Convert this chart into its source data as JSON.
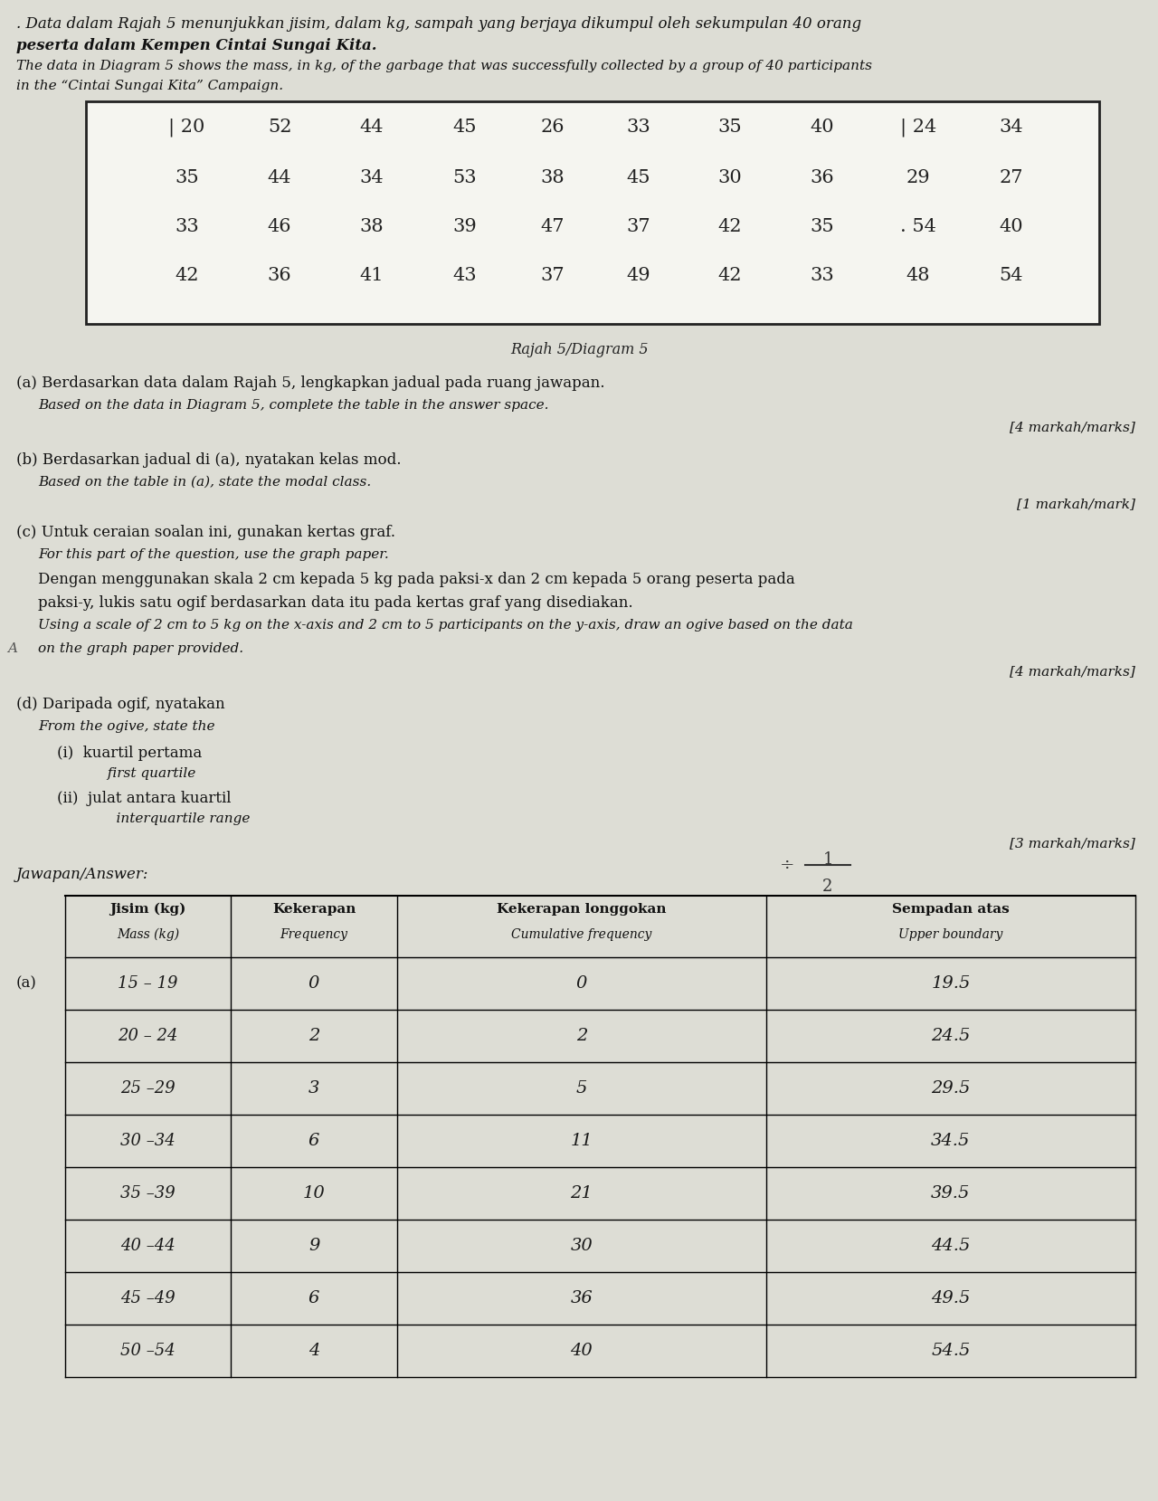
{
  "bg_color": "#ddddd5",
  "title_text1": ". Data dalam Rajah 5 menunjukkan jisim, dalam kg, sampah yang berjaya dikumpul oleh sekumpulan 40 orang",
  "title_text2": "peserta dalam Kempen Cintai Sungai Kita.",
  "title_text3": "The data in Diagram 5 shows the mass, in kg, of the garbage that was successfully collected by a group of 40 participants",
  "title_text4": "in the “Cintai Sungai Kita” Campaign.",
  "data_grid": [
    [
      "| 20",
      "52",
      "44",
      "45",
      "26",
      "33",
      "35",
      "40",
      "| 24",
      "34"
    ],
    [
      "35",
      "44",
      "34",
      "53",
      "38",
      "45",
      "30",
      "36",
      "29",
      "27"
    ],
    [
      "33",
      "46",
      "38",
      "39",
      "47",
      "37",
      "42",
      "35",
      ". 54",
      "40"
    ],
    [
      "42",
      "36",
      "41",
      "43",
      "37",
      "49",
      "42",
      "33",
      "48",
      "54"
    ]
  ],
  "diagram_label": "Rajah 5/Diagram 5",
  "part_a_text1": "(a) Berdasarkan data dalam Rajah 5, lengkapkan jadual pada ruang jawapan.",
  "part_a_text2": "Based on the data in Diagram 5, complete the table in the answer space.",
  "part_a_marks": "[4 markah/marks]",
  "part_b_text1": "(b) Berdasarkan jadual di (a), nyatakan kelas mod.",
  "part_b_text2": "Based on the table in (a), state the modal class.",
  "part_b_marks": "[1 markah/mark]",
  "part_c_text1": "(c) Untuk ceraian soalan ini, gunakan kertas graf.",
  "part_c_text2": "For this part of the question, use the graph paper.",
  "part_c_text3": "Dengan menggunakan skala 2 cm kepada 5 kg pada paksi-x dan 2 cm kepada 5 orang peserta pada",
  "part_c_text4": "paksi-y, lukis satu ogif berdasarkan data itu pada kertas graf yang disediakan.",
  "part_c_text5": "Using a scale of 2 cm to 5 kg on the x-axis and 2 cm to 5 participants on the y-axis, draw an ogive based on the data",
  "part_c_text6": "on the graph paper provided.",
  "part_c_marks": "[4 markah/marks]",
  "part_d_text1": "(d) Daripada ogif, nyatakan",
  "part_d_text2": "From the ogive, state the",
  "part_d_i1": "    (i)  kuartil pertama",
  "part_d_i2": "          first quartile",
  "part_d_ii1": "    (ii)  julat antara kuartil",
  "part_d_ii2": "            interquartile range",
  "part_d_marks": "[3 markah/marks]",
  "answer_label": "Jawapan/Answer:",
  "div2_label": "÷2",
  "table_header": [
    "Jisim (kg)\nMass (kg)",
    "Kekerapan\nFrequency",
    "Kekerapan longgokan\nCumulative frequency",
    "Sempadan atas\nUpper boundary"
  ],
  "table_row_mass": [
    "15 – 19",
    "20 – 24",
    "25 –29",
    "30 –34",
    "35 –39",
    "40 –44",
    "45 –49",
    "50 –54"
  ],
  "table_row_freq": [
    "0",
    "2",
    "3",
    "6",
    "10",
    "9",
    "6",
    "4"
  ],
  "table_row_cumfreq": [
    "0",
    "2",
    "5",
    "11",
    "21",
    "30",
    "36",
    "40"
  ],
  "table_row_upper": [
    "19.5",
    "24.5",
    "29.5",
    "34.5",
    "39.5",
    "44.5",
    "49.5",
    "54.5"
  ],
  "part_a_label": "(a)"
}
